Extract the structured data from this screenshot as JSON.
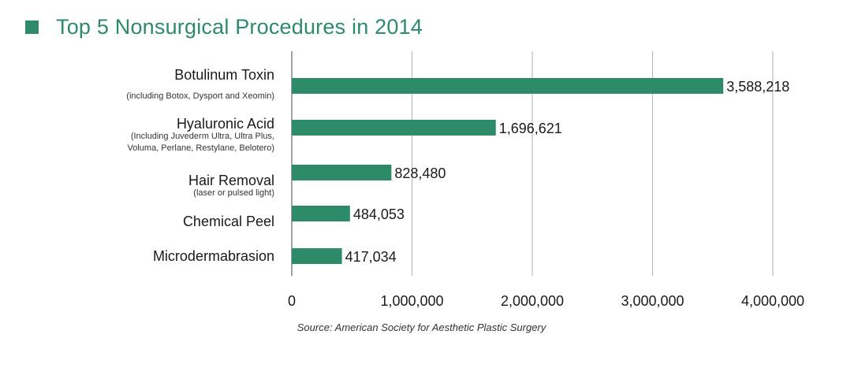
{
  "colors": {
    "accent": "#2e8b6a",
    "grid": "#bbbbbb",
    "axis": "#444444"
  },
  "chart_data": {
    "type": "bar",
    "orientation": "horizontal",
    "title": "Top 5 Nonsurgical Procedures in 2014",
    "categories": [
      {
        "label": "Botulinum Toxin",
        "sublabel": [
          "(including Botox, Dysport and Xeomin)"
        ],
        "value": 3588218,
        "value_label": "3,588,218"
      },
      {
        "label": "Hyaluronic Acid",
        "sublabel": [
          "(Including Juvederm Ultra, Ultra Plus,",
          "Voluma, Perlane, Restylane, Belotero)"
        ],
        "value": 1696621,
        "value_label": "1,696,621"
      },
      {
        "label": "Hair Removal",
        "sublabel": [
          "(laser or pulsed light)"
        ],
        "value": 828480,
        "value_label": "828,480"
      },
      {
        "label": "Chemical Peel",
        "sublabel": [],
        "value": 484053,
        "value_label": "484,053"
      },
      {
        "label": "Microdermabrasion",
        "sublabel": [],
        "value": 417034,
        "value_label": "417,034"
      }
    ],
    "xlim": [
      0,
      4000000
    ],
    "xticks": [
      0,
      1000000,
      2000000,
      3000000,
      4000000
    ],
    "xtick_labels": [
      "0",
      "1,000,000",
      "2,000,000",
      "3,000,000",
      "4,000,000"
    ],
    "grid": "vertical",
    "legend": "top-left",
    "source": "Source: American Society for Aesthetic Plastic Surgery"
  }
}
